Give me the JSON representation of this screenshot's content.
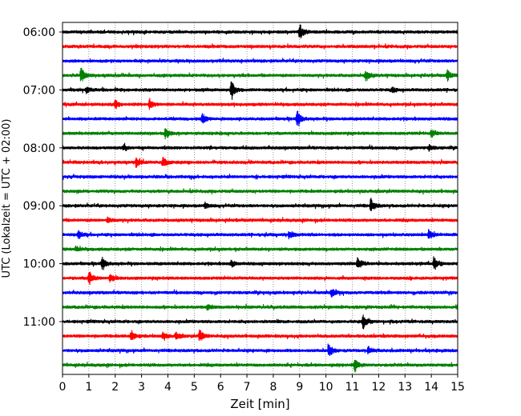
{
  "chart_data": {
    "type": "line",
    "title": "",
    "xlabel": "Zeit  [min]",
    "ylabel": "UTC (Lokalzeit = UTC + 02:00)",
    "xlim": [
      0,
      15
    ],
    "x_ticks": [
      0,
      1,
      2,
      3,
      4,
      5,
      6,
      7,
      8,
      9,
      10,
      11,
      12,
      13,
      14,
      15
    ],
    "x_tick_labels": [
      "0",
      "1",
      "2",
      "3",
      "4",
      "5",
      "6",
      "7",
      "8",
      "9",
      "10",
      "11",
      "12",
      "13",
      "14",
      "15"
    ],
    "y_tick_labels": [
      "06:00",
      "07:00",
      "08:00",
      "09:00",
      "10:00",
      "11:00"
    ],
    "grid": "vertical dotted",
    "trace_colors": [
      "#000000",
      "#ff0000",
      "#0000ff",
      "#008000"
    ],
    "traces_per_hour": 4,
    "trace_interval_min": 15,
    "series": [
      {
        "start": "06:00",
        "color": "#000000",
        "events": [
          [
            9.0,
            1.0
          ]
        ]
      },
      {
        "start": "06:15",
        "color": "#ff0000",
        "events": []
      },
      {
        "start": "06:30",
        "color": "#0000ff",
        "events": []
      },
      {
        "start": "06:45",
        "color": "#008000",
        "events": [
          [
            0.7,
            0.9
          ],
          [
            11.5,
            0.7
          ],
          [
            14.6,
            0.6
          ]
        ]
      },
      {
        "start": "07:00",
        "color": "#000000",
        "events": [
          [
            6.4,
            1.1
          ],
          [
            0.9,
            0.3
          ],
          [
            12.5,
            0.3
          ]
        ]
      },
      {
        "start": "07:15",
        "color": "#ff0000",
        "events": [
          [
            2.0,
            0.5
          ],
          [
            3.3,
            0.6
          ]
        ]
      },
      {
        "start": "07:30",
        "color": "#0000ff",
        "events": [
          [
            5.3,
            0.6
          ],
          [
            8.9,
            1.0
          ]
        ]
      },
      {
        "start": "07:45",
        "color": "#008000",
        "events": [
          [
            3.9,
            0.6
          ],
          [
            14.0,
            0.5
          ]
        ]
      },
      {
        "start": "08:00",
        "color": "#000000",
        "events": [
          [
            2.3,
            0.4
          ],
          [
            13.9,
            0.3
          ]
        ]
      },
      {
        "start": "08:15",
        "color": "#ff0000",
        "events": [
          [
            2.8,
            0.5
          ],
          [
            3.8,
            0.7
          ]
        ]
      },
      {
        "start": "08:30",
        "color": "#0000ff",
        "events": []
      },
      {
        "start": "08:45",
        "color": "#008000",
        "events": []
      },
      {
        "start": "09:00",
        "color": "#000000",
        "events": [
          [
            11.7,
            0.8
          ],
          [
            5.4,
            0.3
          ]
        ]
      },
      {
        "start": "09:15",
        "color": "#ff0000",
        "events": [
          [
            1.7,
            0.3
          ]
        ]
      },
      {
        "start": "09:30",
        "color": "#0000ff",
        "events": [
          [
            0.6,
            0.5
          ],
          [
            8.6,
            0.5
          ],
          [
            13.9,
            0.5
          ]
        ]
      },
      {
        "start": "09:45",
        "color": "#008000",
        "events": [
          [
            0.5,
            0.3
          ]
        ]
      },
      {
        "start": "10:00",
        "color": "#000000",
        "events": [
          [
            1.5,
            0.7
          ],
          [
            6.4,
            0.4
          ],
          [
            11.2,
            0.7
          ],
          [
            14.1,
            0.9
          ]
        ]
      },
      {
        "start": "10:15",
        "color": "#ff0000",
        "events": [
          [
            1.0,
            0.9
          ],
          [
            1.8,
            0.5
          ]
        ]
      },
      {
        "start": "10:30",
        "color": "#0000ff",
        "events": [
          [
            10.2,
            0.5
          ]
        ]
      },
      {
        "start": "10:45",
        "color": "#008000",
        "events": [
          [
            5.5,
            0.3
          ]
        ]
      },
      {
        "start": "11:00",
        "color": "#000000",
        "events": [
          [
            11.4,
            0.9
          ]
        ]
      },
      {
        "start": "11:15",
        "color": "#ff0000",
        "events": [
          [
            2.6,
            0.7
          ],
          [
            5.2,
            0.7
          ],
          [
            3.8,
            0.4
          ],
          [
            4.3,
            0.4
          ]
        ]
      },
      {
        "start": "11:30",
        "color": "#0000ff",
        "events": [
          [
            10.1,
            0.8
          ],
          [
            11.6,
            0.4
          ]
        ]
      },
      {
        "start": "11:45",
        "color": "#008000",
        "events": [
          [
            11.1,
            0.8
          ]
        ]
      }
    ]
  }
}
